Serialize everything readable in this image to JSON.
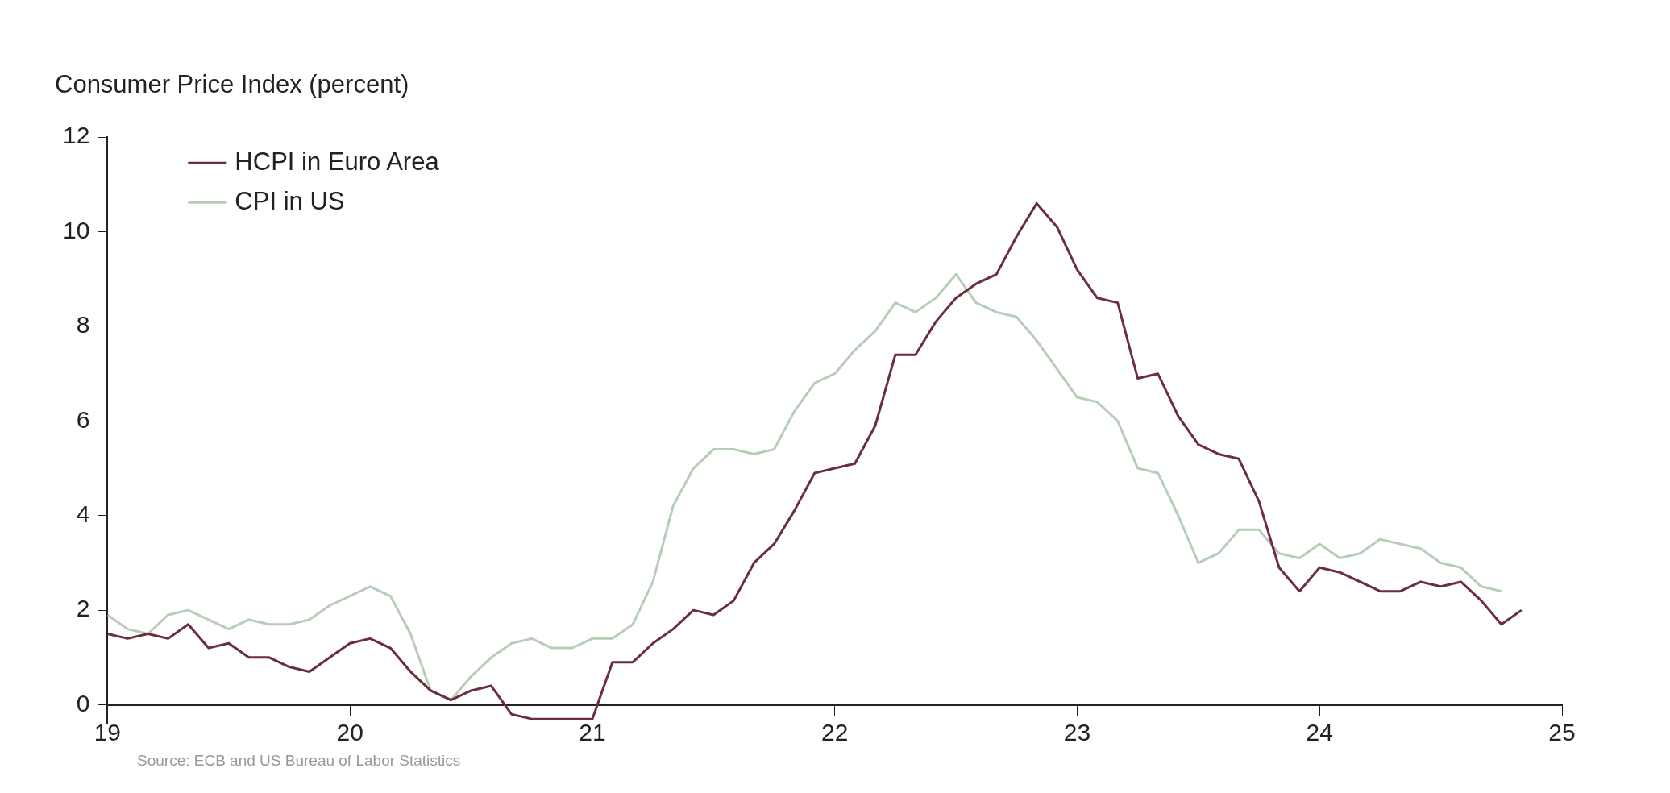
{
  "chart_data": {
    "type": "line",
    "title": "Consumer Price Index (percent)",
    "annotations": [
      "Source: ECB and US Bureau of Labor Statistics"
    ],
    "x": [
      2019,
      2019.083,
      2019.167,
      2019.25,
      2019.333,
      2019.417,
      2019.5,
      2019.583,
      2019.667,
      2019.75,
      2019.833,
      2019.917,
      2020,
      2020.083,
      2020.167,
      2020.25,
      2020.333,
      2020.417,
      2020.5,
      2020.583,
      2020.667,
      2020.75,
      2020.833,
      2020.917,
      2021,
      2021.083,
      2021.167,
      2021.25,
      2021.333,
      2021.417,
      2021.5,
      2021.583,
      2021.667,
      2021.75,
      2021.833,
      2021.917,
      2022,
      2022.083,
      2022.167,
      2022.25,
      2022.333,
      2022.417,
      2022.5,
      2022.583,
      2022.667,
      2022.75,
      2022.833,
      2022.917,
      2023,
      2023.083,
      2023.167,
      2023.25,
      2023.333,
      2023.417,
      2023.5,
      2023.583,
      2023.667,
      2023.75,
      2023.833,
      2023.917,
      2024,
      2024.083,
      2024.167,
      2024.25,
      2024.333,
      2024.417,
      2024.5,
      2024.583,
      2024.667,
      2024.75,
      2024.833
    ],
    "series": [
      {
        "name": "HCPI in Euro Area",
        "color": "#6b2e3e",
        "values": [
          1.5,
          1.4,
          1.5,
          1.4,
          1.7,
          1.2,
          1.3,
          1.0,
          1.0,
          0.8,
          0.7,
          1.0,
          1.3,
          1.4,
          1.2,
          0.7,
          0.3,
          0.1,
          0.3,
          0.4,
          -0.2,
          -0.3,
          -0.3,
          -0.3,
          -0.3,
          0.9,
          0.9,
          1.3,
          1.6,
          2.0,
          1.9,
          2.2,
          3.0,
          3.4,
          4.1,
          4.9,
          5.0,
          5.1,
          5.9,
          7.4,
          7.4,
          8.1,
          8.6,
          8.9,
          9.1,
          9.9,
          10.6,
          10.1,
          9.2,
          8.6,
          8.5,
          6.9,
          7.0,
          6.1,
          5.5,
          5.3,
          5.2,
          4.3,
          2.9,
          2.4,
          2.9,
          2.8,
          2.6,
          2.4,
          2.4,
          2.6,
          2.5,
          2.6,
          2.2,
          1.7,
          2.0
        ]
      },
      {
        "name": "CPI in US",
        "color": "#b8cdb8",
        "values": [
          1.9,
          1.6,
          1.5,
          1.9,
          2.0,
          1.8,
          1.6,
          1.8,
          1.7,
          1.7,
          1.8,
          2.1,
          2.3,
          2.5,
          2.3,
          1.5,
          0.3,
          0.1,
          0.6,
          1.0,
          1.3,
          1.4,
          1.2,
          1.2,
          1.4,
          1.4,
          1.7,
          2.6,
          4.2,
          5.0,
          5.4,
          5.4,
          5.3,
          5.4,
          6.2,
          6.8,
          7.0,
          7.5,
          7.9,
          8.5,
          8.3,
          8.6,
          9.1,
          8.5,
          8.3,
          8.2,
          7.7,
          7.1,
          6.5,
          6.4,
          6.0,
          5.0,
          4.9,
          4.0,
          3.0,
          3.2,
          3.7,
          3.7,
          3.2,
          3.1,
          3.4,
          3.1,
          3.2,
          3.5,
          3.4,
          3.3,
          3.0,
          2.9,
          2.5,
          2.4,
          null
        ]
      }
    ],
    "xlim": [
      2019,
      2025
    ],
    "xticks": [
      {
        "value": 2019,
        "label": "19"
      },
      {
        "value": 2020,
        "label": "20"
      },
      {
        "value": 2021,
        "label": "21"
      },
      {
        "value": 2022,
        "label": "22"
      },
      {
        "value": 2023,
        "label": "23"
      },
      {
        "value": 2024,
        "label": "24"
      },
      {
        "value": 2025,
        "label": "25"
      }
    ],
    "ylim": [
      -0.4,
      12
    ],
    "yticks": [
      0,
      2,
      4,
      6,
      8,
      10,
      12
    ],
    "grid": false,
    "legend": "top left",
    "marker": "none",
    "line_style": "solid"
  }
}
